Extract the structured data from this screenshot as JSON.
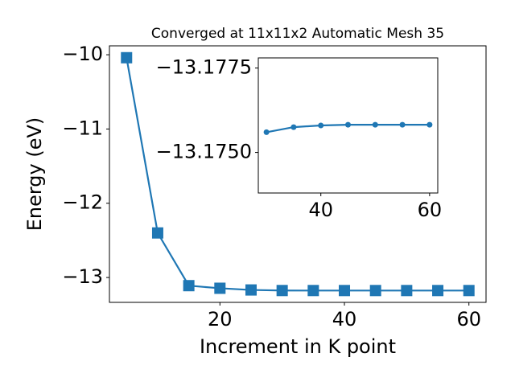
{
  "chart_data": [
    {
      "type": "line",
      "title": "Converged at 11x11x2 Automatic Mesh 35",
      "x_label": "Increment in K point",
      "y_label": "Energy (eV)",
      "x": [
        5,
        10,
        15,
        20,
        25,
        30,
        35,
        40,
        45,
        50,
        55,
        60
      ],
      "series": [
        {
          "name": "Energy",
          "color": "#1f77b4",
          "marker": "square",
          "values": [
            -10.04,
            -12.4,
            -13.11,
            -13.145,
            -13.168,
            -13.1756,
            -13.1757,
            -13.1758,
            -13.1758,
            -13.1758,
            -13.1758,
            -13.1758
          ]
        }
      ],
      "xlim": [
        2.25,
        62.75
      ],
      "ylim": [
        -13.335,
        -9.88
      ],
      "xticks": [
        20,
        40,
        60
      ],
      "yticks": [
        {
          "value": -10,
          "label": "−10"
        },
        {
          "value": -11,
          "label": "−11"
        },
        {
          "value": -12,
          "label": "−12"
        },
        {
          "value": -13,
          "label": "−13"
        }
      ]
    },
    {
      "type": "line",
      "x": [
        30,
        35,
        40,
        45,
        50,
        55,
        60
      ],
      "series": [
        {
          "name": "Energy",
          "color": "#1f77b4",
          "marker": "circle",
          "values": [
            -13.1756,
            -13.17575,
            -13.1758,
            -13.17582,
            -13.17582,
            -13.17582,
            -13.17582
          ]
        }
      ],
      "xlim": [
        28.5,
        61.5
      ],
      "ylim": [
        -13.1738,
        -13.1778
      ],
      "xticks": [
        40,
        60
      ],
      "yticks": [
        {
          "value": -13.1775,
          "label": "−13.1775"
        },
        {
          "value": -13.175,
          "label": "−13.1750"
        }
      ]
    }
  ]
}
